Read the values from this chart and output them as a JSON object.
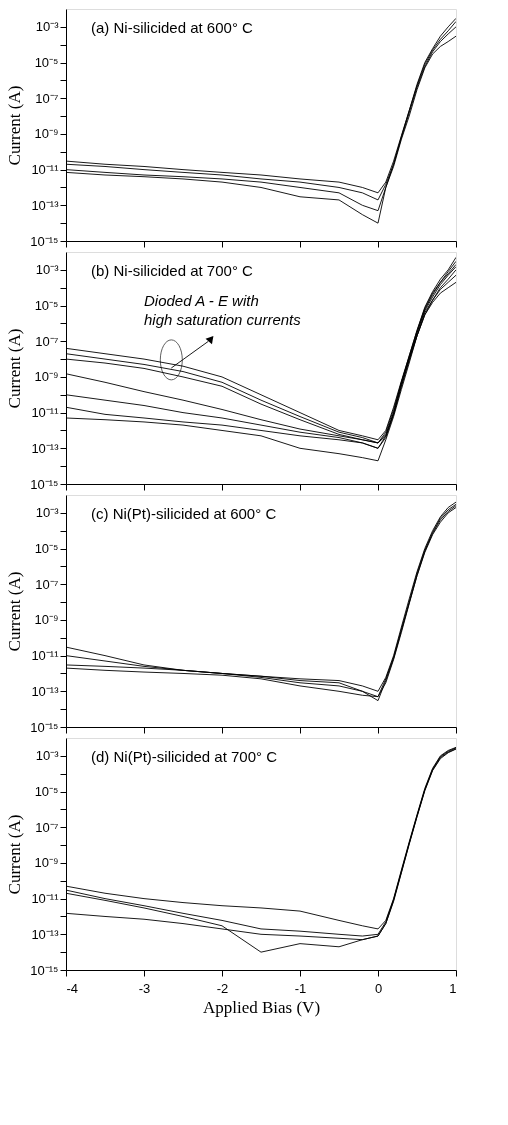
{
  "chart_data": [
    {
      "type": "line",
      "title": "(a) Ni-silicided at 600° C",
      "ylabel": "Current (A)",
      "log": true,
      "grid": false,
      "legend": false,
      "tick_labels": "y",
      "xlim": [
        -4,
        1
      ],
      "xticks": [
        -4,
        -3,
        -2,
        -1,
        0,
        1
      ],
      "ylim": [
        1e-15,
        0.01
      ],
      "yticks": [
        {
          "value": 1e-15,
          "label": "10⁻¹⁵"
        },
        {
          "value": 1e-14,
          "label": null
        },
        {
          "value": 1e-13,
          "label": "10⁻¹³"
        },
        {
          "value": 1e-12,
          "label": null
        },
        {
          "value": 1e-11,
          "label": "10⁻¹¹"
        },
        {
          "value": 1e-10,
          "label": null
        },
        {
          "value": 1e-09,
          "label": "10⁻⁹"
        },
        {
          "value": 1e-08,
          "label": null
        },
        {
          "value": 1e-07,
          "label": "10⁻⁷"
        },
        {
          "value": 1e-06,
          "label": null
        },
        {
          "value": 1e-05,
          "label": "10⁻⁵"
        },
        {
          "value": 0.0001,
          "label": null
        },
        {
          "value": 0.001,
          "label": "10⁻³"
        }
      ],
      "x": [
        -4,
        -3.5,
        -3,
        -2.5,
        -2,
        -1.5,
        -1,
        -0.5,
        -0.2,
        0,
        0.1,
        0.2,
        0.3,
        0.4,
        0.5,
        0.6,
        0.7,
        0.8,
        0.9,
        1.0
      ],
      "series": [
        {
          "color": "#000000",
          "values": [
            3e-11,
            2e-11,
            1.5e-11,
            1e-11,
            7e-12,
            5e-12,
            3e-12,
            2e-12,
            1e-12,
            5e-13,
            2e-12,
            3e-11,
            8e-10,
            2e-08,
            5e-07,
            8e-06,
            5e-05,
            0.0002,
            0.0006,
            0.002
          ]
        },
        {
          "color": "#000000",
          "values": [
            2e-11,
            1.5e-11,
            1e-11,
            7e-12,
            5e-12,
            3e-12,
            2e-12,
            1e-12,
            5e-13,
            2e-13,
            1.5e-12,
            2e-11,
            6e-10,
            1.5e-08,
            4e-07,
            6e-06,
            4e-05,
            0.00015,
            0.0004,
            0.001
          ]
        },
        {
          "color": "#000000",
          "values": [
            1e-11,
            7e-12,
            5e-12,
            4e-12,
            3e-12,
            2e-12,
            1e-12,
            5e-13,
            1e-13,
            5e-14,
            1e-12,
            1.5e-11,
            5e-10,
            1e-08,
            3e-07,
            5e-06,
            3e-05,
            8e-05,
            0.00015,
            0.0003
          ]
        },
        {
          "color": "#000000",
          "values": [
            7e-12,
            5e-12,
            4e-12,
            3e-12,
            2e-12,
            1e-12,
            3e-13,
            2e-13,
            3e-14,
            1e-14,
            1e-12,
            2e-11,
            7e-10,
            2e-08,
            6e-07,
            1e-05,
            6e-05,
            0.0003,
            0.001,
            0.003
          ]
        }
      ]
    },
    {
      "type": "line",
      "title": "(b) Ni-silicided at 700° C",
      "ylabel": "Current (A)",
      "log": true,
      "grid": false,
      "legend": false,
      "tick_labels": "y",
      "annotations": [
        "Dioded A - E with\nhigh saturation currents"
      ],
      "xlim": [
        -4,
        1
      ],
      "xticks": [
        -4,
        -3,
        -2,
        -1,
        0,
        1
      ],
      "ylim": [
        1e-15,
        0.01
      ],
      "yticks": [
        {
          "value": 1e-15,
          "label": "10⁻¹⁵"
        },
        {
          "value": 1e-14,
          "label": null
        },
        {
          "value": 1e-13,
          "label": "10⁻¹³"
        },
        {
          "value": 1e-12,
          "label": null
        },
        {
          "value": 1e-11,
          "label": "10⁻¹¹"
        },
        {
          "value": 1e-10,
          "label": null
        },
        {
          "value": 1e-09,
          "label": "10⁻⁹"
        },
        {
          "value": 1e-08,
          "label": null
        },
        {
          "value": 1e-07,
          "label": "10⁻⁷"
        },
        {
          "value": 1e-06,
          "label": null
        },
        {
          "value": 1e-05,
          "label": "10⁻⁵"
        },
        {
          "value": 0.0001,
          "label": null
        },
        {
          "value": 0.001,
          "label": "10⁻³"
        }
      ],
      "x": [
        -4,
        -3.5,
        -3,
        -2.5,
        -2,
        -1.5,
        -1,
        -0.5,
        -0.2,
        0,
        0.1,
        0.2,
        0.3,
        0.4,
        0.5,
        0.6,
        0.7,
        0.8,
        0.9,
        1.0
      ],
      "series": [
        {
          "color": "#000000",
          "values": [
            4e-08,
            2e-08,
            1e-08,
            4e-09,
            1e-09,
            1e-10,
            1e-11,
            1e-12,
            5e-13,
            3e-13,
            1e-12,
            2e-11,
            6e-10,
            1.5e-08,
            4e-07,
            8e-06,
            6e-05,
            0.0003,
            0.001,
            0.005
          ]
        },
        {
          "color": "#000000",
          "values": [
            2e-08,
            1e-08,
            5e-09,
            2e-09,
            5e-10,
            5e-11,
            6e-12,
            8e-13,
            4e-13,
            2e-13,
            8e-13,
            1.5e-11,
            5e-10,
            1.2e-08,
            3e-07,
            6e-06,
            4e-05,
            0.0002,
            0.0006,
            0.002
          ]
        },
        {
          "color": "#000000",
          "values": [
            1e-08,
            6e-09,
            3e-09,
            1e-09,
            3e-10,
            3e-11,
            4e-12,
            6e-13,
            3e-13,
            2e-13,
            6e-13,
            1e-11,
            4e-10,
            1e-08,
            2e-07,
            4e-06,
            2e-05,
            8e-05,
            0.0002,
            0.0005
          ]
        },
        {
          "color": "#000000",
          "values": [
            1.5e-09,
            5e-10,
            1.5e-10,
            5e-11,
            1.5e-11,
            4e-12,
            1.2e-12,
            5e-13,
            3e-13,
            2e-13,
            5e-13,
            8e-12,
            3e-10,
            8e-09,
            2e-07,
            3e-06,
            1.5e-05,
            5e-05,
            0.0001,
            0.0002
          ]
        },
        {
          "color": "#000000",
          "values": [
            1e-10,
            5e-11,
            2.5e-11,
            1e-11,
            5e-12,
            2e-12,
            8e-13,
            4e-13,
            2e-13,
            1e-13,
            5e-13,
            1e-11,
            5e-10,
            1.5e-08,
            4e-07,
            7e-06,
            5e-05,
            0.0002,
            0.0008,
            0.003
          ]
        },
        {
          "color": "#000000",
          "values": [
            2e-11,
            8e-12,
            5e-12,
            3e-12,
            2e-12,
            1e-12,
            5e-13,
            3e-13,
            2e-13,
            1e-13,
            4e-13,
            8e-12,
            3e-10,
            1e-08,
            3e-07,
            5e-06,
            3e-05,
            0.00015,
            0.0005,
            0.0015
          ]
        },
        {
          "color": "#000000",
          "values": [
            5e-12,
            4e-12,
            3e-12,
            2e-12,
            1e-12,
            5e-13,
            1e-13,
            5e-14,
            3e-14,
            2e-14,
            3e-13,
            6e-12,
            2e-10,
            6e-09,
            2e-07,
            3e-06,
            2e-05,
            0.0001,
            0.0003,
            0.001
          ]
        }
      ]
    },
    {
      "type": "line",
      "title": "(c) Ni(Pt)-silicided at 600° C",
      "ylabel": "Current (A)",
      "log": true,
      "grid": false,
      "legend": false,
      "tick_labels": "y",
      "xlim": [
        -4,
        1
      ],
      "xticks": [
        -4,
        -3,
        -2,
        -1,
        0,
        1
      ],
      "ylim": [
        1e-15,
        0.01
      ],
      "yticks": [
        {
          "value": 1e-15,
          "label": "10⁻¹⁵"
        },
        {
          "value": 1e-14,
          "label": null
        },
        {
          "value": 1e-13,
          "label": "10⁻¹³"
        },
        {
          "value": 1e-12,
          "label": null
        },
        {
          "value": 1e-11,
          "label": "10⁻¹¹"
        },
        {
          "value": 1e-10,
          "label": null
        },
        {
          "value": 1e-09,
          "label": "10⁻⁹"
        },
        {
          "value": 1e-08,
          "label": null
        },
        {
          "value": 1e-07,
          "label": "10⁻⁷"
        },
        {
          "value": 1e-06,
          "label": null
        },
        {
          "value": 1e-05,
          "label": "10⁻⁵"
        },
        {
          "value": 0.0001,
          "label": null
        },
        {
          "value": 0.001,
          "label": "10⁻³"
        }
      ],
      "x": [
        -4,
        -3.5,
        -3,
        -2.5,
        -2,
        -1.5,
        -1,
        -0.5,
        -0.2,
        0,
        0.1,
        0.2,
        0.3,
        0.4,
        0.5,
        0.6,
        0.7,
        0.8,
        0.9,
        1.0
      ],
      "series": [
        {
          "color": "#000000",
          "values": [
            3e-11,
            1e-11,
            3e-12,
            1.5e-12,
            1e-12,
            7e-13,
            5e-13,
            4e-13,
            2e-13,
            1e-13,
            6e-13,
            1e-11,
            4e-10,
            1.5e-08,
            5e-07,
            1e-05,
            0.0001,
            0.0006,
            0.002,
            0.004
          ]
        },
        {
          "color": "#000000",
          "values": [
            1e-11,
            5e-12,
            2.5e-12,
            1.5e-12,
            1e-12,
            7e-13,
            4e-13,
            3e-13,
            1e-13,
            5e-14,
            5e-13,
            8e-12,
            3e-10,
            1e-08,
            4e-07,
            8e-06,
            8e-05,
            0.0005,
            0.0015,
            0.003
          ]
        },
        {
          "color": "#000000",
          "values": [
            3e-12,
            2.5e-12,
            2e-12,
            1.5e-12,
            1e-12,
            6e-13,
            3e-13,
            2e-13,
            1e-13,
            3e-14,
            4e-13,
            7e-12,
            2.5e-10,
            9e-09,
            3e-07,
            7e-06,
            7e-05,
            0.0004,
            0.0012,
            0.0025
          ]
        },
        {
          "color": "#000000",
          "values": [
            2e-12,
            1.5e-12,
            1.2e-12,
            1e-12,
            8e-13,
            5e-13,
            2e-13,
            1e-13,
            6e-14,
            5e-14,
            3e-13,
            6e-12,
            2e-10,
            8e-09,
            3e-07,
            6e-06,
            6e-05,
            0.0003,
            0.001,
            0.002
          ]
        }
      ]
    },
    {
      "type": "line",
      "title": "(d) Ni(Pt)-silicided at 700° C",
      "xlabel": "Applied Bias (V)",
      "ylabel": "Current (A)",
      "log": true,
      "grid": false,
      "legend": false,
      "xlim": [
        -4,
        1
      ],
      "xticks": [
        -4,
        -3,
        -2,
        -1,
        0,
        1
      ],
      "ylim": [
        1e-15,
        0.01
      ],
      "yticks": [
        {
          "value": 1e-15,
          "label": "10⁻¹⁵"
        },
        {
          "value": 1e-14,
          "label": null
        },
        {
          "value": 1e-13,
          "label": "10⁻¹³"
        },
        {
          "value": 1e-12,
          "label": null
        },
        {
          "value": 1e-11,
          "label": "10⁻¹¹"
        },
        {
          "value": 1e-10,
          "label": null
        },
        {
          "value": 1e-09,
          "label": "10⁻⁹"
        },
        {
          "value": 1e-08,
          "label": null
        },
        {
          "value": 1e-07,
          "label": "10⁻⁷"
        },
        {
          "value": 1e-06,
          "label": null
        },
        {
          "value": 1e-05,
          "label": "10⁻⁵"
        },
        {
          "value": 0.0001,
          "label": null
        },
        {
          "value": 0.001,
          "label": "10⁻³"
        }
      ],
      "x": [
        -4,
        -3.5,
        -3,
        -2.5,
        -2,
        -1.5,
        -1,
        -0.5,
        -0.2,
        0,
        0.1,
        0.2,
        0.3,
        0.4,
        0.5,
        0.6,
        0.7,
        0.8,
        0.9,
        1.0
      ],
      "series": [
        {
          "color": "#000000",
          "values": [
            5e-11,
            2e-11,
            1e-11,
            6e-12,
            4e-12,
            3e-12,
            2e-12,
            6e-13,
            3e-13,
            2e-13,
            6e-13,
            1e-11,
            4e-10,
            1.5e-08,
            5e-07,
            1.5e-05,
            0.0002,
            0.001,
            0.002,
            0.003
          ]
        },
        {
          "color": "#000000",
          "values": [
            3e-11,
            1e-11,
            4e-12,
            1.5e-12,
            6e-13,
            2e-13,
            1.5e-13,
            1e-13,
            8e-14,
            1e-13,
            5e-13,
            9e-12,
            3.5e-10,
            1.3e-08,
            4.5e-07,
            1.3e-05,
            0.00018,
            0.0009,
            0.0018,
            0.0028
          ]
        },
        {
          "color": "#000000",
          "values": [
            2e-11,
            8e-12,
            3e-12,
            1e-12,
            3e-13,
            1e-14,
            3e-14,
            2e-14,
            5e-14,
            8e-14,
            4e-13,
            8e-12,
            3e-10,
            1.2e-08,
            4e-07,
            1.2e-05,
            0.00016,
            0.0008,
            0.0016,
            0.0025
          ]
        },
        {
          "color": "#000000",
          "values": [
            1.5e-12,
            1e-12,
            7e-13,
            4e-13,
            2e-13,
            1e-13,
            8e-14,
            6e-14,
            5e-14,
            8e-14,
            4e-13,
            7e-12,
            2.8e-10,
            1.1e-08,
            3.8e-07,
            1.1e-05,
            0.00015,
            0.0007,
            0.0015,
            0.0024
          ]
        }
      ]
    }
  ]
}
